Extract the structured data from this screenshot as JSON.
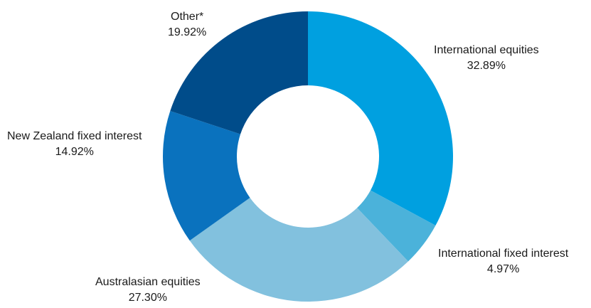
{
  "chart_data": {
    "type": "pie",
    "variant": "donut",
    "title": "",
    "slices": [
      {
        "label": "International equities",
        "value": 32.89,
        "value_label": "32.89%",
        "color": "#00A0E0"
      },
      {
        "label": "International fixed interest",
        "value": 4.97,
        "value_label": "4.97%",
        "color": "#4BB2DA"
      },
      {
        "label": "Australasian equities",
        "value": 27.3,
        "value_label": "27.30%",
        "color": "#82C1DE"
      },
      {
        "label": "New Zealand fixed interest",
        "value": 14.92,
        "value_label": "14.92%",
        "color": "#0A72BE"
      },
      {
        "label": "Other*",
        "value": 19.92,
        "value_label": "19.92%",
        "color": "#004C8A"
      }
    ]
  }
}
